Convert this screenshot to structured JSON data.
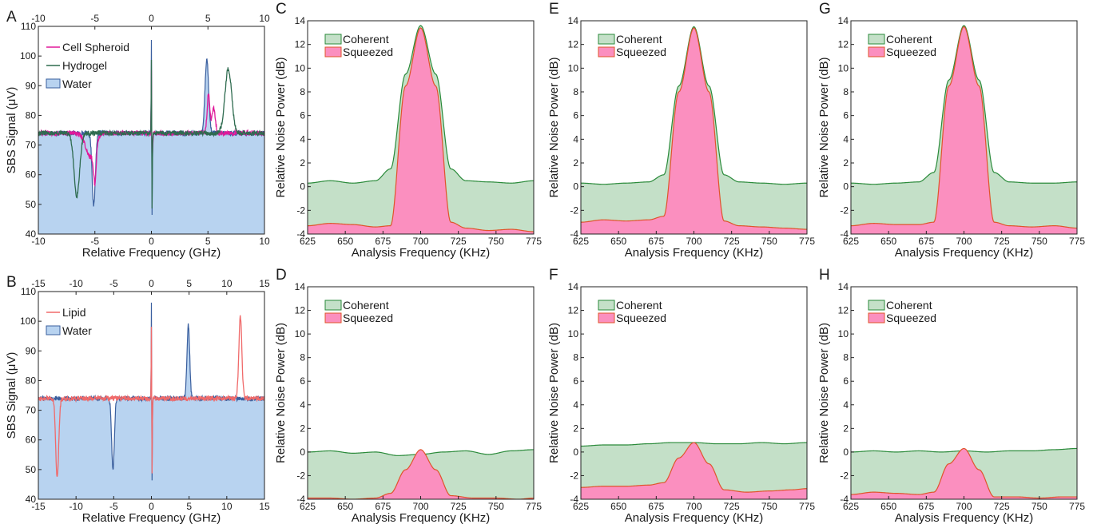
{
  "figure": {
    "colors": {
      "water": "#b8d3f0",
      "water_line": "#3a5f9e",
      "cell": "#e0199a",
      "hydrogel": "#2e6b4f",
      "lipid": "#f06a6a",
      "coherent_fill": "#c4e0c8",
      "coherent_line": "#2a8a3a",
      "squeezed_fill": "#fb8fbf",
      "squeezed_line": "#e0542a"
    }
  },
  "chart_data": [
    {
      "id": "A",
      "panel_label": "A",
      "type": "line",
      "xlabel": "Relative Frequency (GHz)",
      "ylabel": "SBS Signal (μV)",
      "xlim": [
        -10,
        10
      ],
      "ylim": [
        40,
        110
      ],
      "xticks": [
        -10,
        -5,
        0,
        5,
        10
      ],
      "yticks": [
        40,
        50,
        60,
        70,
        80,
        90,
        100,
        110
      ],
      "top_xticks": [
        -10,
        -5,
        0,
        5,
        10
      ],
      "baseline": 74,
      "series": [
        {
          "name": "Water",
          "style": "area",
          "color": "#b8d3f0",
          "line": "#3a5f9e",
          "legend": "patch",
          "features": [
            {
              "center": -5.1,
              "amp": -24.5,
              "width": 0.14
            },
            {
              "center": 4.9,
              "amp": 25,
              "width": 0.16
            },
            {
              "center": 0,
              "amp": 32,
              "width": 0.02,
              "side": "left"
            },
            {
              "center": 0.04,
              "amp": -31,
              "width": 0.035,
              "side": "right"
            }
          ]
        },
        {
          "name": "Cell Spheroid",
          "style": "line",
          "color": "#e0199a",
          "legend": "line",
          "features": [
            {
              "center": -5.4,
              "amp": -8,
              "width": 0.4
            },
            {
              "center": -5,
              "amp": -12,
              "width": 0.12
            },
            {
              "center": 5.05,
              "amp": 13,
              "width": 0.12
            },
            {
              "center": 5.5,
              "amp": 8.5,
              "width": 0.14
            },
            {
              "center": 0,
              "amp": 22,
              "width": 0.02,
              "side": "left"
            },
            {
              "center": 0.04,
              "amp": -12,
              "width": 0.06,
              "side": "right"
            }
          ]
        },
        {
          "name": "Hydrogel",
          "style": "line",
          "color": "#2e6b4f",
          "legend": "line",
          "features": [
            {
              "center": -6.6,
              "amp": -21,
              "width": 0.25
            },
            {
              "center": 6.8,
              "amp": 21.5,
              "width": 0.3
            },
            {
              "center": 0,
              "amp": 24,
              "width": 0.02,
              "side": "left"
            },
            {
              "center": 0.04,
              "amp": -28,
              "width": 0.035,
              "side": "right"
            }
          ]
        }
      ]
    },
    {
      "id": "B",
      "panel_label": "B",
      "type": "line",
      "xlabel": "Relative Frequency (GHz)",
      "ylabel": "SBS Signal (μV)",
      "xlim": [
        -15,
        15
      ],
      "ylim": [
        40,
        110
      ],
      "xticks": [
        -15,
        -10,
        -5,
        0,
        5,
        10,
        15
      ],
      "yticks": [
        40,
        50,
        60,
        70,
        80,
        90,
        100,
        110
      ],
      "top_xticks": [
        -15,
        -10,
        -5,
        0,
        5,
        10,
        15
      ],
      "baseline": 74,
      "series": [
        {
          "name": "Water",
          "style": "area",
          "color": "#b8d3f0",
          "line": "#3a5f9e",
          "legend": "patch",
          "features": [
            {
              "center": -5.1,
              "amp": -24,
              "width": 0.18
            },
            {
              "center": 4.9,
              "amp": 25,
              "width": 0.18
            },
            {
              "center": 0,
              "amp": 32,
              "width": 0.03,
              "side": "left"
            },
            {
              "center": 0.06,
              "amp": -31,
              "width": 0.05,
              "side": "right"
            }
          ]
        },
        {
          "name": "Lipid",
          "style": "line",
          "color": "#f06a6a",
          "legend": "line",
          "features": [
            {
              "center": -12.5,
              "amp": -27,
              "width": 0.2
            },
            {
              "center": 11.8,
              "amp": 27.5,
              "width": 0.2
            },
            {
              "center": 0,
              "amp": 24,
              "width": 0.03,
              "side": "left"
            },
            {
              "center": 0.06,
              "amp": -28,
              "width": 0.05,
              "side": "right"
            }
          ]
        }
      ]
    },
    {
      "id": "C",
      "panel_label": "C",
      "type": "area",
      "xlabel": "Analysis Frequency (KHz)",
      "ylabel": "Relative Noise Power (dB)",
      "xlim": [
        625,
        775
      ],
      "ylim": [
        -4,
        14
      ],
      "xticks": [
        625,
        650,
        675,
        700,
        725,
        750,
        775
      ],
      "yticks": [
        -4,
        -2,
        0,
        2,
        4,
        6,
        8,
        10,
        12,
        14
      ],
      "series": [
        {
          "name": "Coherent",
          "x": [
            625,
            640,
            655,
            670,
            680,
            690,
            700,
            710,
            720,
            730,
            745,
            760,
            775
          ],
          "values": [
            0.3,
            0.5,
            0.3,
            0.5,
            1.5,
            9.5,
            13.6,
            9.5,
            1.5,
            0.5,
            0.4,
            0.3,
            0.5
          ]
        },
        {
          "name": "Squeezed",
          "x": [
            625,
            640,
            655,
            670,
            680,
            690,
            700,
            710,
            720,
            730,
            745,
            760,
            775
          ],
          "values": [
            -3.3,
            -3.1,
            -3.2,
            -3.4,
            -3.3,
            8.5,
            13.4,
            8.5,
            -3.0,
            -3.5,
            -3.7,
            -3.6,
            -3.8
          ]
        }
      ]
    },
    {
      "id": "D",
      "panel_label": "D",
      "type": "area",
      "xlabel": "Analysis Frequency (KHz)",
      "ylabel": "Relative Noise Power (dB)",
      "xlim": [
        625,
        775
      ],
      "ylim": [
        -4,
        14
      ],
      "xticks": [
        625,
        650,
        675,
        700,
        725,
        750,
        775
      ],
      "yticks": [
        -4,
        -2,
        0,
        2,
        4,
        6,
        8,
        10,
        12,
        14
      ],
      "series": [
        {
          "name": "Coherent",
          "x": [
            625,
            640,
            655,
            670,
            685,
            700,
            715,
            730,
            745,
            760,
            775
          ],
          "values": [
            0.0,
            0.1,
            -0.1,
            0.0,
            -0.3,
            -0.2,
            0.0,
            0.1,
            -0.2,
            0.1,
            0.2
          ]
        },
        {
          "name": "Squeezed",
          "x": [
            625,
            640,
            655,
            670,
            680,
            690,
            700,
            710,
            720,
            735,
            750,
            765,
            775
          ],
          "values": [
            -3.9,
            -3.9,
            -4.0,
            -3.9,
            -3.5,
            -1.5,
            0.2,
            -1.5,
            -3.7,
            -3.9,
            -3.9,
            -4.0,
            -3.9
          ]
        }
      ]
    },
    {
      "id": "E",
      "panel_label": "E",
      "type": "area",
      "xlabel": "Analysis Frequency (KHz)",
      "ylabel": "Relative Noise Power (dB)",
      "xlim": [
        625,
        775
      ],
      "ylim": [
        -4,
        14
      ],
      "xticks": [
        625,
        650,
        675,
        700,
        725,
        750,
        775
      ],
      "yticks": [
        -4,
        -2,
        0,
        2,
        4,
        6,
        8,
        10,
        12,
        14
      ],
      "series": [
        {
          "name": "Coherent",
          "x": [
            625,
            640,
            655,
            670,
            680,
            690,
            700,
            710,
            720,
            730,
            745,
            760,
            775
          ],
          "values": [
            0.3,
            0.2,
            0.3,
            0.4,
            1.0,
            8.5,
            13.5,
            8.5,
            1.0,
            0.4,
            0.3,
            0.2,
            0.3
          ]
        },
        {
          "name": "Squeezed",
          "x": [
            625,
            640,
            655,
            670,
            680,
            690,
            700,
            710,
            720,
            730,
            745,
            760,
            775
          ],
          "values": [
            -3.0,
            -2.8,
            -2.9,
            -2.8,
            -2.5,
            8.0,
            13.4,
            8.0,
            -2.9,
            -3.3,
            -3.4,
            -3.5,
            -3.6
          ]
        }
      ]
    },
    {
      "id": "F",
      "panel_label": "F",
      "type": "area",
      "xlabel": "Analysis Frequency (KHz)",
      "ylabel": "Relative Noise Power (dB)",
      "xlim": [
        625,
        775
      ],
      "ylim": [
        -4,
        14
      ],
      "xticks": [
        625,
        650,
        675,
        700,
        725,
        750,
        775
      ],
      "yticks": [
        -4,
        -2,
        0,
        2,
        4,
        6,
        8,
        10,
        12,
        14
      ],
      "series": [
        {
          "name": "Coherent",
          "x": [
            625,
            640,
            655,
            670,
            685,
            700,
            715,
            730,
            745,
            760,
            775
          ],
          "values": [
            0.5,
            0.6,
            0.6,
            0.7,
            0.8,
            0.8,
            0.7,
            0.7,
            0.8,
            0.7,
            0.8
          ]
        },
        {
          "name": "Squeezed",
          "x": [
            625,
            640,
            655,
            670,
            680,
            690,
            700,
            710,
            720,
            735,
            750,
            765,
            775
          ],
          "values": [
            -3.0,
            -2.9,
            -2.9,
            -2.8,
            -2.6,
            -0.5,
            0.8,
            -1.0,
            -3.2,
            -3.4,
            -3.3,
            -3.2,
            -3.1
          ]
        }
      ]
    },
    {
      "id": "G",
      "panel_label": "G",
      "type": "area",
      "xlabel": "Analysis Frequency (KHz)",
      "ylabel": "Relative Noise Power (dB)",
      "xlim": [
        625,
        775
      ],
      "ylim": [
        -4,
        14
      ],
      "xticks": [
        625,
        650,
        675,
        700,
        725,
        750,
        775
      ],
      "yticks": [
        -4,
        -2,
        0,
        2,
        4,
        6,
        8,
        10,
        12,
        14
      ],
      "series": [
        {
          "name": "Coherent",
          "x": [
            625,
            640,
            655,
            670,
            680,
            690,
            700,
            710,
            720,
            730,
            745,
            760,
            775
          ],
          "values": [
            0.3,
            0.2,
            0.3,
            0.4,
            1.2,
            9.0,
            13.6,
            9.0,
            1.2,
            0.4,
            0.3,
            0.3,
            0.4
          ]
        },
        {
          "name": "Squeezed",
          "x": [
            625,
            640,
            655,
            670,
            680,
            690,
            700,
            710,
            720,
            730,
            745,
            760,
            775
          ],
          "values": [
            -3.3,
            -3.1,
            -3.2,
            -3.2,
            -3.0,
            8.5,
            13.5,
            8.5,
            -3.0,
            -3.3,
            -3.4,
            -3.3,
            -3.5
          ]
        }
      ]
    },
    {
      "id": "H",
      "panel_label": "H",
      "type": "area",
      "xlabel": "Analysis Frequency (KHz)",
      "ylabel": "Relative Noise Power (dB)",
      "xlim": [
        625,
        775
      ],
      "ylim": [
        -4,
        14
      ],
      "xticks": [
        625,
        650,
        675,
        700,
        725,
        750,
        775
      ],
      "yticks": [
        -4,
        -2,
        0,
        2,
        4,
        6,
        8,
        10,
        12,
        14
      ],
      "series": [
        {
          "name": "Coherent",
          "x": [
            625,
            640,
            655,
            670,
            685,
            700,
            715,
            730,
            745,
            760,
            775
          ],
          "values": [
            0.0,
            0.1,
            0.0,
            0.1,
            0.0,
            0.1,
            0.0,
            0.1,
            0.1,
            0.2,
            0.3
          ]
        },
        {
          "name": "Squeezed",
          "x": [
            625,
            640,
            655,
            670,
            680,
            690,
            700,
            710,
            720,
            735,
            750,
            765,
            775
          ],
          "values": [
            -3.6,
            -3.4,
            -3.5,
            -3.6,
            -3.4,
            -1.0,
            0.3,
            -1.5,
            -3.8,
            -3.8,
            -3.9,
            -3.8,
            -3.8
          ]
        }
      ]
    }
  ]
}
